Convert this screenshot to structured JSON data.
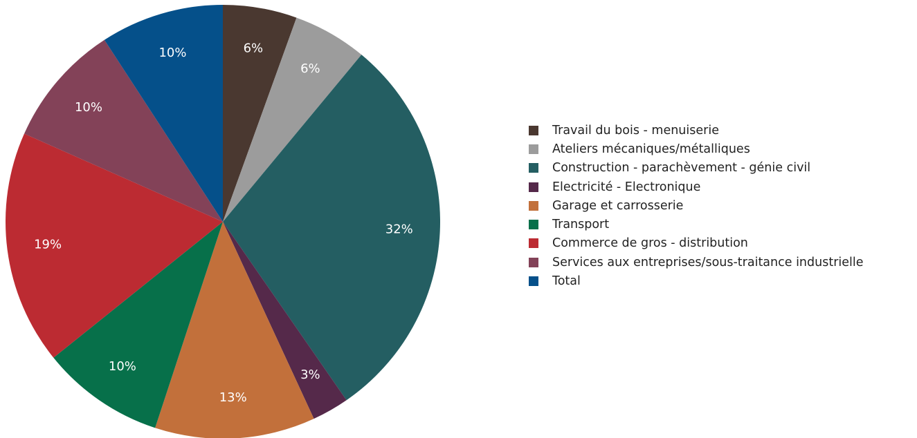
{
  "chart_data": {
    "type": "pie",
    "title": "",
    "legend_position": "right",
    "slices": [
      {
        "name": "Travail du bois - menuiserie",
        "value": 6,
        "label": "6%",
        "color": "#4a3830"
      },
      {
        "name": "Ateliers mécaniques/métalliques",
        "value": 6,
        "label": "6%",
        "color": "#9c9c9c"
      },
      {
        "name": "Construction - parachèvement - génie civil",
        "value": 32,
        "label": "32%",
        "color": "#245e62"
      },
      {
        "name": "Electricité - Electronique",
        "value": 3,
        "label": "3%",
        "color": "#55294a"
      },
      {
        "name": "Garage et carrosserie",
        "value": 13,
        "label": "13%",
        "color": "#c2703b"
      },
      {
        "name": "Transport",
        "value": 10,
        "label": "10%",
        "color": "#07704a"
      },
      {
        "name": "Commerce de gros - distribution",
        "value": 19,
        "label": "19%",
        "color": "#bc2b32"
      },
      {
        "name": "Services aux entreprises/sous-traitance industrielle",
        "value": 10,
        "label": "10%",
        "color": "#834258"
      },
      {
        "name": "Total",
        "value": 10,
        "label": "10%",
        "color": "#05508a"
      }
    ]
  }
}
